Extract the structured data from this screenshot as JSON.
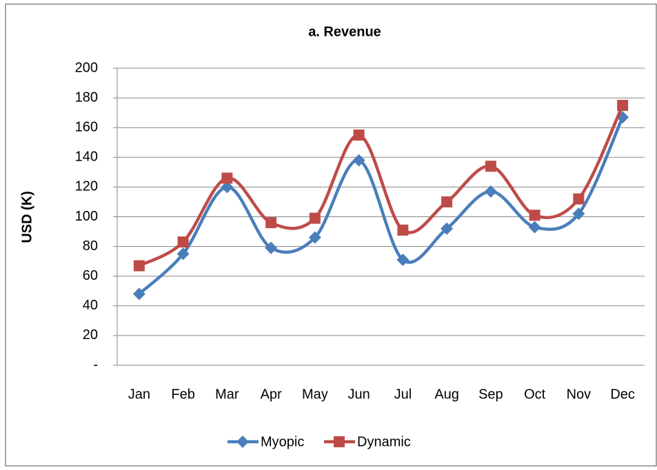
{
  "chart_data": {
    "type": "line",
    "title": "a. Revenue",
    "y_label": "USD (K)",
    "categories": [
      "Jan",
      "Feb",
      "Mar",
      "Apr",
      "May",
      "Jun",
      "Jul",
      "Aug",
      "Sep",
      "Oct",
      "Nov",
      "Dec"
    ],
    "series": [
      {
        "name": "Myopic",
        "color": "#4a7ebb",
        "marker": "diamond",
        "values": [
          48,
          75,
          120,
          79,
          86,
          138,
          71,
          92,
          117,
          93,
          102,
          167
        ]
      },
      {
        "name": "Dynamic",
        "color": "#be4b48",
        "marker": "square",
        "values": [
          67,
          83,
          126,
          96,
          99,
          155,
          91,
          110,
          134,
          101,
          112,
          175
        ]
      }
    ],
    "ylim": [
      0,
      200
    ],
    "yticks": [
      {
        "value": 0,
        "label": "-"
      },
      20,
      40,
      60,
      80,
      100,
      120,
      140,
      160,
      180,
      200
    ],
    "grid": true,
    "smooth": true,
    "legend": "bottom"
  }
}
